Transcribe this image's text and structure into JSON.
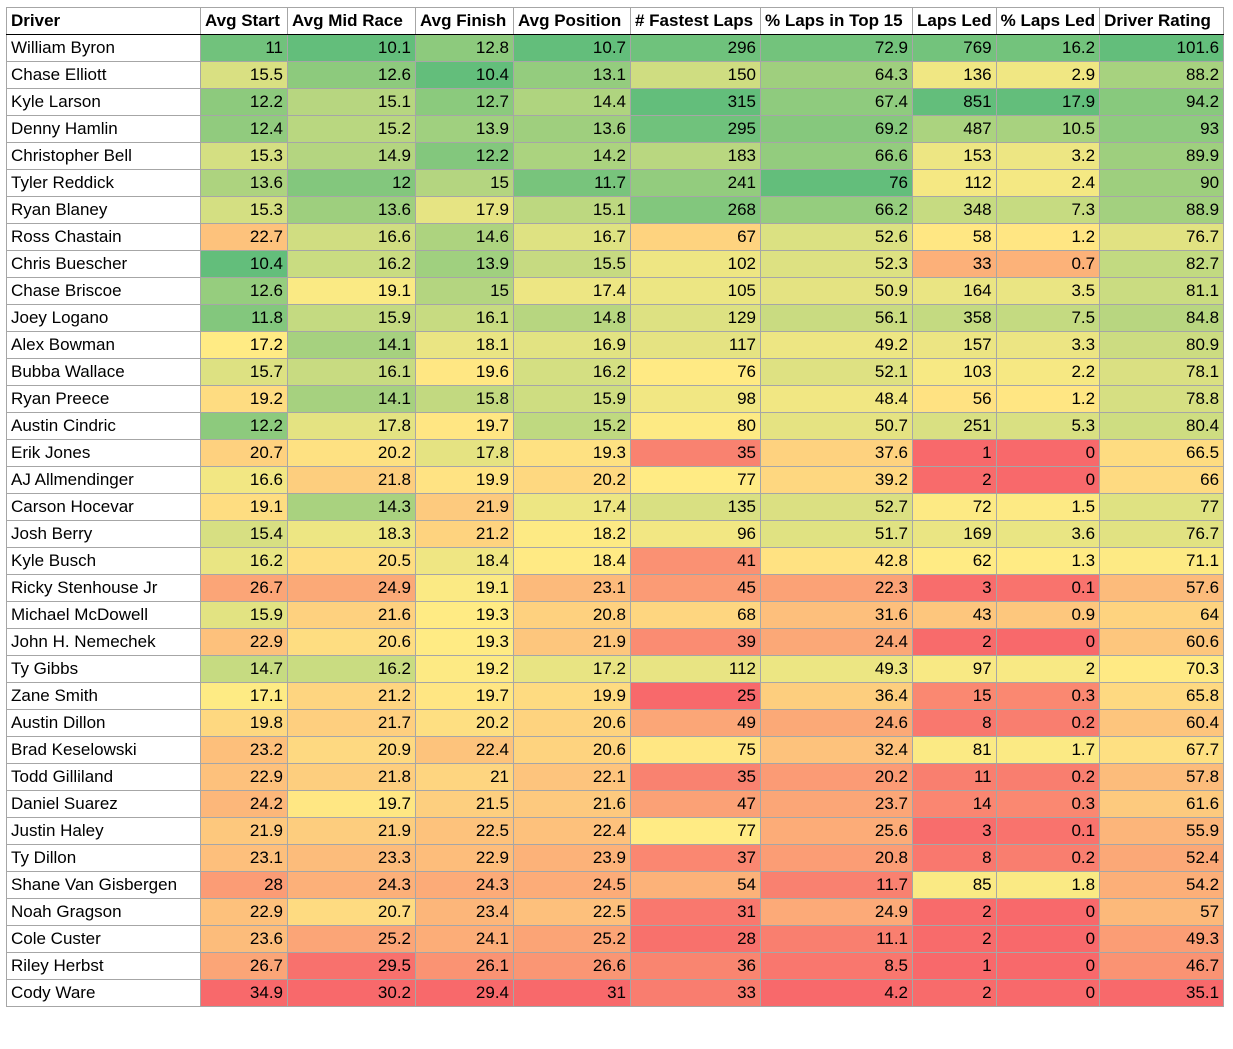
{
  "table": {
    "header": [
      "Driver",
      "Avg Start",
      "Avg Mid Race",
      "Avg Finish",
      "Avg Position",
      "# Fastest Laps",
      "% Laps in Top 15",
      "Laps Led",
      "% Laps Led",
      "Driver Rating"
    ],
    "rows": [
      [
        "William Byron",
        11,
        10.1,
        12.8,
        10.7,
        296,
        72.9,
        769,
        16.2,
        101.6
      ],
      [
        "Chase Elliott",
        15.5,
        12.6,
        10.4,
        13.1,
        150,
        64.3,
        136,
        2.9,
        88.2
      ],
      [
        "Kyle Larson",
        12.2,
        15.1,
        12.7,
        14.4,
        315,
        67.4,
        851,
        17.9,
        94.2
      ],
      [
        "Denny Hamlin",
        12.4,
        15.2,
        13.9,
        13.6,
        295,
        69.2,
        487,
        10.5,
        93
      ],
      [
        "Christopher Bell",
        15.3,
        14.9,
        12.2,
        14.2,
        183,
        66.6,
        153,
        3.2,
        89.9
      ],
      [
        "Tyler Reddick",
        13.6,
        12,
        15,
        11.7,
        241,
        76,
        112,
        2.4,
        90
      ],
      [
        "Ryan Blaney",
        15.3,
        13.6,
        17.9,
        15.1,
        268,
        66.2,
        348,
        7.3,
        88.9
      ],
      [
        "Ross Chastain",
        22.7,
        16.6,
        14.6,
        16.7,
        67,
        52.6,
        58,
        1.2,
        76.7
      ],
      [
        "Chris Buescher",
        10.4,
        16.2,
        13.9,
        15.5,
        102,
        52.3,
        33,
        0.7,
        82.7
      ],
      [
        "Chase Briscoe",
        12.6,
        19.1,
        15,
        17.4,
        105,
        50.9,
        164,
        3.5,
        81.1
      ],
      [
        "Joey Logano",
        11.8,
        15.9,
        16.1,
        14.8,
        129,
        56.1,
        358,
        7.5,
        84.8
      ],
      [
        "Alex Bowman",
        17.2,
        14.1,
        18.1,
        16.9,
        117,
        49.2,
        157,
        3.3,
        80.9
      ],
      [
        "Bubba Wallace",
        15.7,
        16.1,
        19.6,
        16.2,
        76,
        52.1,
        103,
        2.2,
        78.1
      ],
      [
        "Ryan Preece",
        19.2,
        14.1,
        15.8,
        15.9,
        98,
        48.4,
        56,
        1.2,
        78.8
      ],
      [
        "Austin Cindric",
        12.2,
        17.8,
        19.7,
        15.2,
        80,
        50.7,
        251,
        5.3,
        80.4
      ],
      [
        "Erik Jones",
        20.7,
        20.2,
        17.8,
        19.3,
        35,
        37.6,
        1,
        0,
        66.5
      ],
      [
        "AJ Allmendinger",
        16.6,
        21.8,
        19.9,
        20.2,
        77,
        39.2,
        2,
        0,
        66
      ],
      [
        "Carson Hocevar",
        19.1,
        14.3,
        21.9,
        17.4,
        135,
        52.7,
        72,
        1.5,
        77
      ],
      [
        "Josh Berry",
        15.4,
        18.3,
        21.2,
        18.2,
        96,
        51.7,
        169,
        3.6,
        76.7
      ],
      [
        "Kyle Busch",
        16.2,
        20.5,
        18.4,
        18.4,
        41,
        42.8,
        62,
        1.3,
        71.1
      ],
      [
        "Ricky Stenhouse Jr",
        26.7,
        24.9,
        19.1,
        23.1,
        45,
        22.3,
        3,
        0.1,
        57.6
      ],
      [
        "Michael McDowell",
        15.9,
        21.6,
        19.3,
        20.8,
        68,
        31.6,
        43,
        0.9,
        64
      ],
      [
        "John H. Nemechek",
        22.9,
        20.6,
        19.3,
        21.9,
        39,
        24.4,
        2,
        0,
        60.6
      ],
      [
        "Ty Gibbs",
        14.7,
        16.2,
        19.2,
        17.2,
        112,
        49.3,
        97,
        2,
        70.3
      ],
      [
        "Zane Smith",
        17.1,
        21.2,
        19.7,
        19.9,
        25,
        36.4,
        15,
        0.3,
        65.8
      ],
      [
        "Austin Dillon",
        19.8,
        21.7,
        20.2,
        20.6,
        49,
        24.6,
        8,
        0.2,
        60.4
      ],
      [
        "Brad Keselowski",
        23.2,
        20.9,
        22.4,
        20.6,
        75,
        32.4,
        81,
        1.7,
        67.7
      ],
      [
        "Todd Gilliland",
        22.9,
        21.8,
        21,
        22.1,
        35,
        20.2,
        11,
        0.2,
        57.8
      ],
      [
        "Daniel Suarez",
        24.2,
        19.7,
        21.5,
        21.6,
        47,
        23.7,
        14,
        0.3,
        61.6
      ],
      [
        "Justin Haley",
        21.9,
        21.9,
        22.5,
        22.4,
        77,
        25.6,
        3,
        0.1,
        55.9
      ],
      [
        "Ty Dillon",
        23.1,
        23.3,
        22.9,
        23.9,
        37,
        20.8,
        8,
        0.2,
        52.4
      ],
      [
        "Shane Van Gisbergen",
        28,
        24.3,
        24.3,
        24.5,
        54,
        11.7,
        85,
        1.8,
        54.2
      ],
      [
        "Noah Gragson",
        22.9,
        20.7,
        23.4,
        22.5,
        31,
        24.9,
        2,
        0,
        57
      ],
      [
        "Cole Custer",
        23.6,
        25.2,
        24.1,
        25.2,
        28,
        11.1,
        2,
        0,
        49.3
      ],
      [
        "Riley Herbst",
        26.7,
        29.5,
        26.1,
        26.6,
        36,
        8.5,
        1,
        0,
        46.7
      ],
      [
        "Cody Ware",
        34.9,
        30.2,
        29.4,
        31,
        33,
        4.2,
        2,
        0,
        35.1
      ]
    ]
  }
}
